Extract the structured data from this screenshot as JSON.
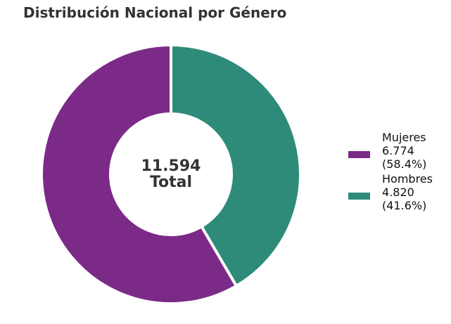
{
  "chart_data": {
    "type": "pie",
    "variant": "donut",
    "title": "Distribución Nacional por Género",
    "center_label": {
      "value": "11.594",
      "caption": "Total"
    },
    "total": 11594,
    "slices": [
      {
        "label": "Mujeres",
        "value": 6774,
        "value_text": "6.774",
        "percent": 58.4,
        "percent_text": "(58.4%)",
        "color": "#7b2a88"
      },
      {
        "label": "Hombres",
        "value": 4820,
        "value_text": "4.820",
        "percent": 41.6,
        "percent_text": "(41.6%)",
        "color": "#2e8b7a"
      }
    ],
    "start_angle": "top",
    "direction": "counterclockwise",
    "legend_position": "right"
  }
}
